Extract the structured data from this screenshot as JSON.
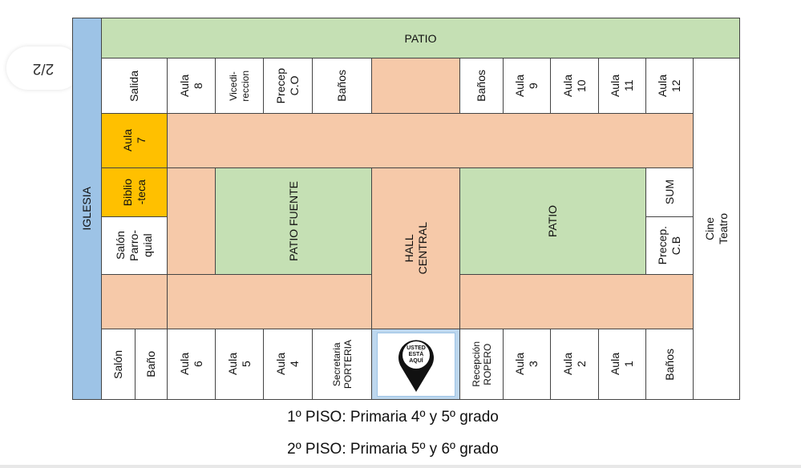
{
  "page_indicator": "2/2",
  "plan": {
    "iglesia": "IGLESIA",
    "patio_top": "PATIO",
    "salida": "Salida",
    "aula8": "Aula\n8",
    "vicedireccion": "Vicedi-\nreccion",
    "precep_co": "Precep\nC.O",
    "banos_1": "Baños",
    "banos_2": "Baños",
    "aula9": "Aula\n9",
    "aula10": "Aula\n10",
    "aula11": "Aula\n11",
    "aula12": "Aula\n12",
    "cine_teatro": "Cine\nTeatro",
    "aula7": "Aula\n7",
    "biblioteca": "Biblio\n-teca",
    "salon_parroquial": "Salón\nParro-\nquial",
    "patio_fuente": "PATIO FUENTE",
    "hall_central": "HALL\nCENTRAL",
    "patio": "PATIO",
    "sum": "SUM",
    "precep_cb": "Precep.\nC.B",
    "salon": "Salón",
    "bano": "Baño",
    "aula6": "Aula\n6",
    "aula5": "Aula\n5",
    "aula4": "Aula\n4",
    "secretaria": "Secretaria\nPORTERIA",
    "usted_aqui": "USTED ESTÁ AQUÍ",
    "recepcion": "Recepción\nROPERO",
    "aula3": "Aula\n3",
    "aula2": "Aula\n2",
    "aula1": "Aula\n1",
    "banos_3": "Baños"
  },
  "captions": [
    "1º PISO: Primaria 4º y 5º grado",
    "2º PISO: Primaria 5º y 6º grado"
  ],
  "colors": {
    "church": "#9dc3e6",
    "patio": "#c5e0b4",
    "corridor": "#f6c9a9",
    "highlight": "#ffc000"
  }
}
